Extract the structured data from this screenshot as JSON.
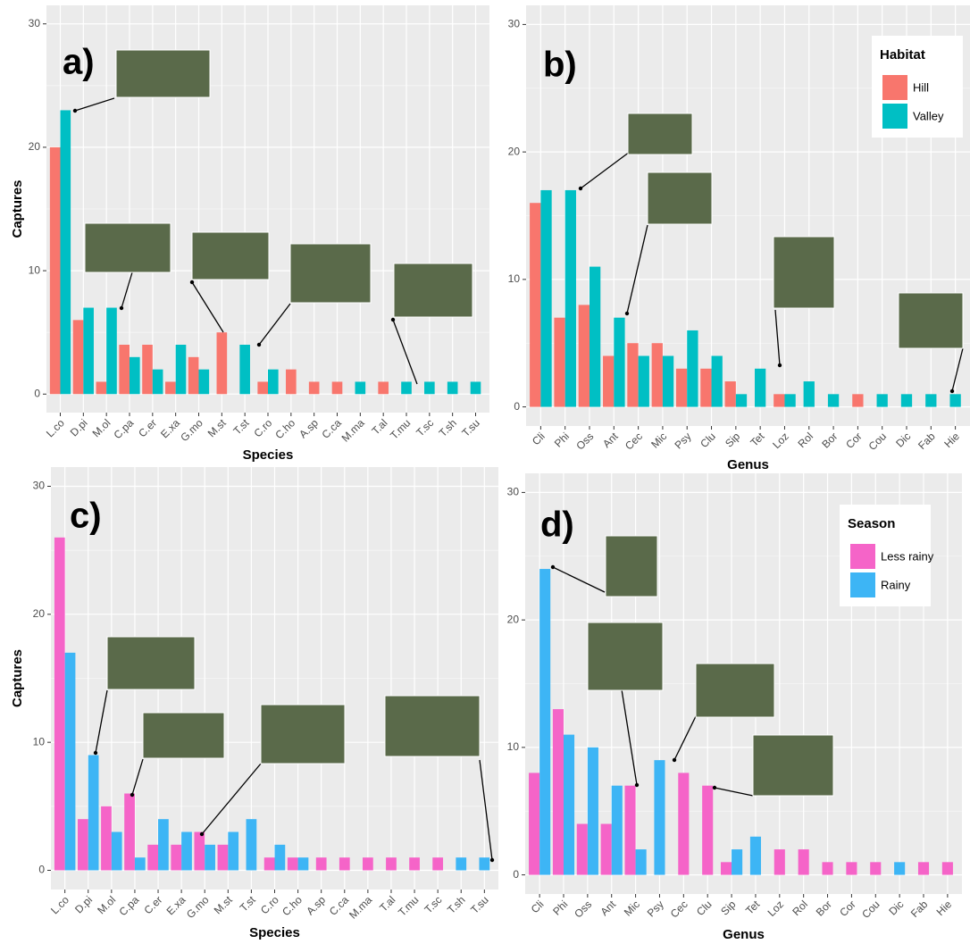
{
  "chart_data": [
    {
      "type": "bar",
      "panel_label": "a)",
      "y_label": "Captures",
      "x_label": "Species",
      "categories": [
        "L.co",
        "D.pi",
        "M.ol",
        "C.pa",
        "C.er",
        "E.xa",
        "G.mo",
        "M.st",
        "T.st",
        "C.ro",
        "C.ho",
        "A.sp",
        "C.ca",
        "M.ma",
        "T.al",
        "T.mu",
        "T.sc",
        "T.sh",
        "T.su"
      ],
      "series": [
        {
          "color": "#f8766d",
          "values": [
            20,
            6,
            1,
            4,
            4,
            1,
            3,
            5,
            null,
            1,
            2,
            1,
            1,
            null,
            1,
            null,
            null,
            null,
            null
          ]
        },
        {
          "color": "#00bfc4",
          "values": [
            23,
            7,
            7,
            3,
            2,
            4,
            2,
            null,
            4,
            2,
            null,
            null,
            null,
            1,
            null,
            1,
            1,
            1,
            1
          ]
        }
      ],
      "ylim": [
        -1.5,
        31.5
      ],
      "yticks": [
        0,
        10,
        20,
        30
      ],
      "grid": true
    },
    {
      "type": "bar",
      "panel_label": "b)",
      "x_label": "Genus",
      "legend_title": "Habitat",
      "legend": "top-right",
      "categories": [
        "Cli",
        "Phi",
        "Oss",
        "Ant",
        "Cec",
        "Mic",
        "Psy",
        "Clu",
        "Sip",
        "Tet",
        "Loz",
        "Rol",
        "Bor",
        "Cor",
        "Cou",
        "Dic",
        "Fab",
        "Hie"
      ],
      "series": [
        {
          "name": "Hill",
          "color": "#f8766d",
          "values": [
            16,
            7,
            8,
            4,
            5,
            5,
            3,
            3,
            2,
            null,
            1,
            null,
            null,
            1,
            null,
            null,
            null,
            null
          ]
        },
        {
          "name": "Valley",
          "color": "#00bfc4",
          "values": [
            17,
            17,
            11,
            7,
            4,
            4,
            6,
            4,
            1,
            3,
            1,
            2,
            1,
            null,
            1,
            1,
            1,
            1
          ]
        }
      ],
      "ylim": [
        -1.5,
        31.5
      ],
      "yticks": [
        0,
        10,
        20,
        30
      ],
      "grid": true
    },
    {
      "type": "bar",
      "panel_label": "c)",
      "y_label": "Captures",
      "x_label": "Species",
      "categories": [
        "L.co",
        "D.pi",
        "M.ol",
        "C.pa",
        "C.er",
        "E.xa",
        "G.mo",
        "M.st",
        "T.st",
        "C.ro",
        "C.ho",
        "A.sp",
        "C.ca",
        "M.ma",
        "T.al",
        "T.mu",
        "T.sc",
        "T.sh",
        "T.su"
      ],
      "series": [
        {
          "color": "#f564c8",
          "values": [
            26,
            4,
            5,
            6,
            2,
            2,
            3,
            2,
            null,
            1,
            1,
            1,
            1,
            1,
            1,
            1,
            1,
            null,
            null
          ]
        },
        {
          "color": "#3db5f5",
          "values": [
            17,
            9,
            3,
            1,
            4,
            3,
            2,
            3,
            4,
            2,
            1,
            null,
            null,
            null,
            null,
            null,
            null,
            1,
            1
          ]
        }
      ],
      "ylim": [
        -1.5,
        31.5
      ],
      "yticks": [
        0,
        10,
        20,
        30
      ],
      "grid": true
    },
    {
      "type": "bar",
      "panel_label": "d)",
      "x_label": "Genus",
      "legend_title": "Season",
      "legend": "top-right",
      "categories": [
        "Cli",
        "Phi",
        "Oss",
        "Ant",
        "Mic",
        "Psy",
        "Cec",
        "Clu",
        "Sip",
        "Tet",
        "Loz",
        "Rol",
        "Bor",
        "Cor",
        "Cou",
        "Dic",
        "Fab",
        "Hie"
      ],
      "series": [
        {
          "name": "Less rainy",
          "color": "#f564c8",
          "values": [
            8,
            13,
            4,
            4,
            7,
            null,
            8,
            7,
            1,
            null,
            2,
            2,
            1,
            1,
            1,
            null,
            1,
            1
          ]
        },
        {
          "name": "Rainy",
          "color": "#3db5f5",
          "values": [
            24,
            11,
            10,
            7,
            2,
            9,
            null,
            null,
            2,
            3,
            null,
            null,
            null,
            null,
            null,
            1,
            null,
            null
          ]
        }
      ],
      "ylim": [
        -1.5,
        31.5
      ],
      "yticks": [
        0,
        10,
        20,
        30
      ],
      "grid": true
    }
  ]
}
